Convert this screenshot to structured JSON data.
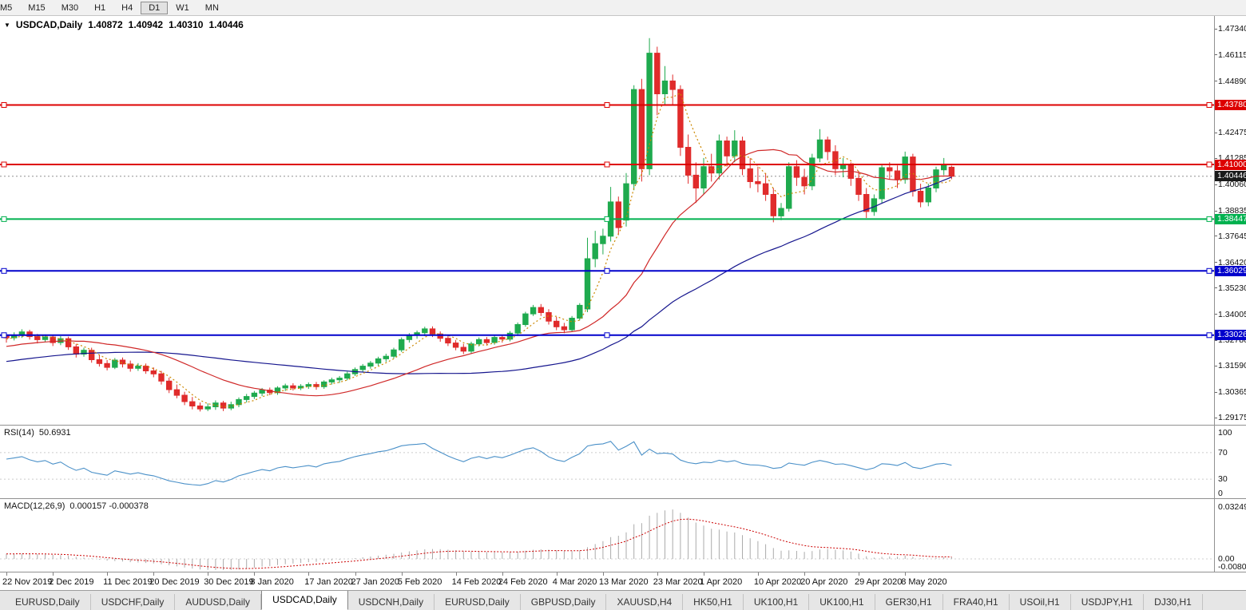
{
  "toolbar": {
    "timeframes": [
      "M5",
      "M15",
      "M30",
      "H1",
      "H4",
      "D1",
      "W1",
      "MN"
    ],
    "active": "D1"
  },
  "chart_header": {
    "symbol": "USDCAD,Daily",
    "open": "1.40872",
    "high": "1.40942",
    "low": "1.40310",
    "close": "1.40446"
  },
  "price_axis": {
    "ticks": [
      "1.47340",
      "1.46115",
      "1.44890",
      "1.42475",
      "1.41285",
      "1.40060",
      "1.38835",
      "1.37645",
      "1.36420",
      "1.35230",
      "1.34005",
      "1.32780",
      "1.31590",
      "1.30365",
      "1.29175"
    ],
    "current_label": "1.40446"
  },
  "rsi_panel": {
    "title": "RSI(14)",
    "value": "50.6931",
    "ticks": [
      100,
      70,
      30,
      0
    ],
    "levels": [
      70,
      30
    ]
  },
  "macd_panel": {
    "title": "MACD(12,26,9)",
    "values": "0.000157 -0.000378",
    "ticks": [
      {
        "label": "0.032493",
        "v": 0.032493
      },
      {
        "label": "0.00",
        "v": 0
      },
      {
        "label": "-0.00808",
        "v": -0.008086
      }
    ]
  },
  "tabs": {
    "items": [
      "EURUSD,Daily",
      "USDCHF,Daily",
      "AUDUSD,Daily",
      "USDCAD,Daily",
      "USDCNH,Daily",
      "EURUSD,Daily",
      "GBPUSD,Daily",
      "XAUUSD,H4",
      "HK50,H1",
      "UK100,H1",
      "UK100,H1",
      "GER30,H1",
      "FRA40,H1",
      "USOil,H1",
      "USDJPY,H1",
      "DJ30,H1"
    ],
    "active_index": 3
  },
  "colors": {
    "bull": "#1faa4e",
    "bear": "#e02b2b",
    "ma_fast": "#cc8800",
    "ma_mid": "#d02828",
    "ma_slow": "#16168e",
    "rsi": "#4a90c8",
    "macd_hist": "#ababab",
    "macd_signal": "#cc0000"
  },
  "chart_data": {
    "type": "candlestick",
    "symbol": "USDCAD",
    "period": "Daily",
    "current_price": 1.40446,
    "price_axis_top": 1.4734,
    "hlines": [
      {
        "price": 1.4378,
        "label": "1.43780",
        "color": "#dd0000"
      },
      {
        "price": 1.41,
        "label": "1.41000",
        "color": "#dd0000"
      },
      {
        "price": 1.38447,
        "label": "1.38447",
        "color": "#00b14f"
      },
      {
        "price": 1.36029,
        "label": "1.36029",
        "color": "#0000cc"
      },
      {
        "price": 1.33026,
        "label": "1.33026",
        "color": "#0000cc"
      }
    ],
    "moving_averages": [
      {
        "period": 5,
        "style": "dotted",
        "color": "#cc8800"
      },
      {
        "period": 20,
        "style": "solid",
        "color": "#d02828"
      },
      {
        "period": 50,
        "style": "solid",
        "color": "#16168e"
      }
    ],
    "indicators": [
      {
        "name": "RSI",
        "period": 14,
        "value": 50.6931
      },
      {
        "name": "MACD",
        "fast": 12,
        "slow": 26,
        "signal": 9,
        "values": [
          0.000157,
          -0.000378
        ]
      }
    ],
    "date_axis": [
      {
        "label": "22 Nov 2019",
        "index": 0
      },
      {
        "label": "2 Dec 2019",
        "index": 6
      },
      {
        "label": "11 Dec 2019",
        "index": 13
      },
      {
        "label": "20 Dec 2019",
        "index": 19
      },
      {
        "label": "30 Dec 2019",
        "index": 26
      },
      {
        "label": "8 Jan 2020",
        "index": 32
      },
      {
        "label": "17 Jan 2020",
        "index": 39
      },
      {
        "label": "27 Jan 2020",
        "index": 45
      },
      {
        "label": "5 Feb 2020",
        "index": 51
      },
      {
        "label": "14 Feb 2020",
        "index": 58
      },
      {
        "label": "24 Feb 2020",
        "index": 64
      },
      {
        "label": "4 Mar 2020",
        "index": 71
      },
      {
        "label": "13 Mar 2020",
        "index": 77
      },
      {
        "label": "23 Mar 2020",
        "index": 84
      },
      {
        "label": "1 Apr 2020",
        "index": 90
      },
      {
        "label": "10 Apr 2020",
        "index": 97
      },
      {
        "label": "20 Apr 2020",
        "index": 103
      },
      {
        "label": "29 Apr 2020",
        "index": 110
      },
      {
        "label": "8 May 2020",
        "index": 116
      }
    ],
    "candles": [
      [
        1.3298,
        1.3312,
        1.3268,
        1.329
      ],
      [
        1.329,
        1.3316,
        1.3278,
        1.3302
      ],
      [
        1.3302,
        1.333,
        1.329,
        1.3318
      ],
      [
        1.3318,
        1.3328,
        1.3282,
        1.3296
      ],
      [
        1.3296,
        1.3308,
        1.3264,
        1.3282
      ],
      [
        1.3282,
        1.3306,
        1.327,
        1.3294
      ],
      [
        1.3294,
        1.3304,
        1.3252,
        1.3268
      ],
      [
        1.3268,
        1.3298,
        1.3256,
        1.3286
      ],
      [
        1.3286,
        1.3296,
        1.3234,
        1.3248
      ],
      [
        1.3248,
        1.3262,
        1.3198,
        1.3214
      ],
      [
        1.3214,
        1.3244,
        1.3202,
        1.3232
      ],
      [
        1.3232,
        1.3244,
        1.3174,
        1.3188
      ],
      [
        1.3188,
        1.3212,
        1.3156,
        1.317
      ],
      [
        1.317,
        1.3186,
        1.3138,
        1.3152
      ],
      [
        1.3152,
        1.3196,
        1.3144,
        1.3186
      ],
      [
        1.3186,
        1.3198,
        1.3152,
        1.3168
      ],
      [
        1.3168,
        1.3184,
        1.3132,
        1.3148
      ],
      [
        1.3148,
        1.3172,
        1.3136,
        1.3158
      ],
      [
        1.3158,
        1.317,
        1.3122,
        1.3136
      ],
      [
        1.3136,
        1.3152,
        1.3106,
        1.3122
      ],
      [
        1.3122,
        1.3136,
        1.3072,
        1.3088
      ],
      [
        1.3088,
        1.3104,
        1.3032,
        1.3048
      ],
      [
        1.3048,
        1.3072,
        1.3008,
        1.3022
      ],
      [
        1.3022,
        1.3038,
        1.2976,
        1.2992
      ],
      [
        1.2992,
        1.3014,
        1.2956,
        1.2972
      ],
      [
        1.2972,
        1.2988,
        1.2946,
        1.2958
      ],
      [
        1.2958,
        1.2984,
        1.2948,
        1.2968
      ],
      [
        1.2968,
        1.2998,
        1.2954,
        1.2986
      ],
      [
        1.2986,
        1.2996,
        1.2948,
        1.2962
      ],
      [
        1.2962,
        1.2992,
        1.2952,
        1.2978
      ],
      [
        1.2978,
        1.3012,
        1.2966,
        1.3002
      ],
      [
        1.3002,
        1.3028,
        1.2988,
        1.3016
      ],
      [
        1.3016,
        1.3042,
        1.3004,
        1.3032
      ],
      [
        1.3032,
        1.3056,
        1.3018,
        1.3046
      ],
      [
        1.3046,
        1.3058,
        1.3022,
        1.3034
      ],
      [
        1.3034,
        1.3064,
        1.3024,
        1.3056
      ],
      [
        1.3056,
        1.3076,
        1.3042,
        1.3066
      ],
      [
        1.3066,
        1.3078,
        1.3044,
        1.3056
      ],
      [
        1.3056,
        1.3074,
        1.3046,
        1.3064
      ],
      [
        1.3064,
        1.3082,
        1.3052,
        1.3072
      ],
      [
        1.3072,
        1.3084,
        1.3048,
        1.3062
      ],
      [
        1.3062,
        1.3092,
        1.3052,
        1.3084
      ],
      [
        1.3084,
        1.3104,
        1.3072,
        1.3094
      ],
      [
        1.3094,
        1.3112,
        1.308,
        1.3102
      ],
      [
        1.3102,
        1.3132,
        1.3092,
        1.3122
      ],
      [
        1.3122,
        1.3152,
        1.3112,
        1.3142
      ],
      [
        1.3142,
        1.3168,
        1.313,
        1.3158
      ],
      [
        1.3158,
        1.3182,
        1.3146,
        1.3172
      ],
      [
        1.3172,
        1.3202,
        1.316,
        1.3192
      ],
      [
        1.3192,
        1.3216,
        1.3178,
        1.3204
      ],
      [
        1.3204,
        1.3244,
        1.3194,
        1.3234
      ],
      [
        1.3234,
        1.3292,
        1.3224,
        1.3282
      ],
      [
        1.3282,
        1.3312,
        1.3268,
        1.3302
      ],
      [
        1.3302,
        1.3324,
        1.3286,
        1.3314
      ],
      [
        1.3314,
        1.3342,
        1.3298,
        1.3332
      ],
      [
        1.3332,
        1.3344,
        1.3294,
        1.3308
      ],
      [
        1.3308,
        1.332,
        1.3272,
        1.3288
      ],
      [
        1.3288,
        1.33,
        1.3252,
        1.3266
      ],
      [
        1.3266,
        1.328,
        1.3232,
        1.3246
      ],
      [
        1.3246,
        1.3262,
        1.3214,
        1.3228
      ],
      [
        1.3228,
        1.3272,
        1.3218,
        1.3262
      ],
      [
        1.3262,
        1.3292,
        1.325,
        1.3282
      ],
      [
        1.3282,
        1.3294,
        1.3254,
        1.3268
      ],
      [
        1.3268,
        1.3302,
        1.3258,
        1.3292
      ],
      [
        1.3292,
        1.3304,
        1.3268,
        1.3284
      ],
      [
        1.3284,
        1.3322,
        1.3274,
        1.3312
      ],
      [
        1.3312,
        1.3362,
        1.3302,
        1.3352
      ],
      [
        1.3352,
        1.3412,
        1.3342,
        1.3402
      ],
      [
        1.3402,
        1.3444,
        1.3392,
        1.3432
      ],
      [
        1.3432,
        1.3448,
        1.3392,
        1.3408
      ],
      [
        1.3408,
        1.3424,
        1.3352,
        1.3368
      ],
      [
        1.3368,
        1.3388,
        1.3326,
        1.3342
      ],
      [
        1.3342,
        1.336,
        1.3312,
        1.3328
      ],
      [
        1.3328,
        1.3392,
        1.3318,
        1.3382
      ],
      [
        1.3382,
        1.3452,
        1.3372,
        1.3442
      ],
      [
        1.3425,
        1.3758,
        1.341,
        1.366
      ],
      [
        1.366,
        1.379,
        1.362,
        1.373
      ],
      [
        1.373,
        1.38,
        1.368,
        1.3765
      ],
      [
        1.3765,
        1.3995,
        1.374,
        1.3925
      ],
      [
        1.3925,
        1.395,
        1.377,
        1.3805
      ],
      [
        1.384,
        1.406,
        1.381,
        1.401
      ],
      [
        1.401,
        1.447,
        1.398,
        1.445
      ],
      [
        1.445,
        1.45,
        1.402,
        1.408
      ],
      [
        1.408,
        1.469,
        1.405,
        1.462
      ],
      [
        1.462,
        1.465,
        1.433,
        1.443
      ],
      [
        1.443,
        1.456,
        1.438,
        1.449
      ],
      [
        1.449,
        1.452,
        1.438,
        1.445
      ],
      [
        1.445,
        1.447,
        1.414,
        1.418
      ],
      [
        1.418,
        1.424,
        1.401,
        1.405
      ],
      [
        1.405,
        1.411,
        1.392,
        1.399
      ],
      [
        1.399,
        1.413,
        1.396,
        1.409
      ],
      [
        1.409,
        1.415,
        1.402,
        1.406
      ],
      [
        1.406,
        1.424,
        1.403,
        1.421
      ],
      [
        1.421,
        1.423,
        1.409,
        1.414
      ],
      [
        1.414,
        1.426,
        1.411,
        1.421
      ],
      [
        1.421,
        1.423,
        1.405,
        1.408
      ],
      [
        1.408,
        1.413,
        1.399,
        1.402
      ],
      [
        1.402,
        1.409,
        1.397,
        1.401
      ],
      [
        1.401,
        1.406,
        1.393,
        1.396
      ],
      [
        1.396,
        1.399,
        1.383,
        1.386
      ],
      [
        1.386,
        1.392,
        1.384,
        1.3895
      ],
      [
        1.3895,
        1.411,
        1.388,
        1.409
      ],
      [
        1.409,
        1.412,
        1.4,
        1.404
      ],
      [
        1.404,
        1.408,
        1.396,
        1.4
      ],
      [
        1.4,
        1.415,
        1.398,
        1.413
      ],
      [
        1.413,
        1.4265,
        1.411,
        1.4215
      ],
      [
        1.4215,
        1.423,
        1.412,
        1.416
      ],
      [
        1.416,
        1.419,
        1.405,
        1.408
      ],
      [
        1.408,
        1.413,
        1.404,
        1.4095
      ],
      [
        1.4095,
        1.411,
        1.4,
        1.4035
      ],
      [
        1.4035,
        1.407,
        1.393,
        1.396
      ],
      [
        1.396,
        1.399,
        1.385,
        1.388
      ],
      [
        1.388,
        1.396,
        1.386,
        1.394
      ],
      [
        1.394,
        1.41,
        1.392,
        1.4085
      ],
      [
        1.4085,
        1.411,
        1.403,
        1.407
      ],
      [
        1.407,
        1.4095,
        1.399,
        1.403
      ],
      [
        1.403,
        1.416,
        1.401,
        1.4135
      ],
      [
        1.4135,
        1.415,
        1.395,
        1.3975
      ],
      [
        1.3975,
        1.401,
        1.39,
        1.3925
      ],
      [
        1.3925,
        1.401,
        1.3905,
        1.399
      ],
      [
        1.399,
        1.409,
        1.397,
        1.4075
      ],
      [
        1.4075,
        1.413,
        1.405,
        1.41
      ],
      [
        1.40872,
        1.40942,
        1.4031,
        1.40446
      ]
    ]
  }
}
